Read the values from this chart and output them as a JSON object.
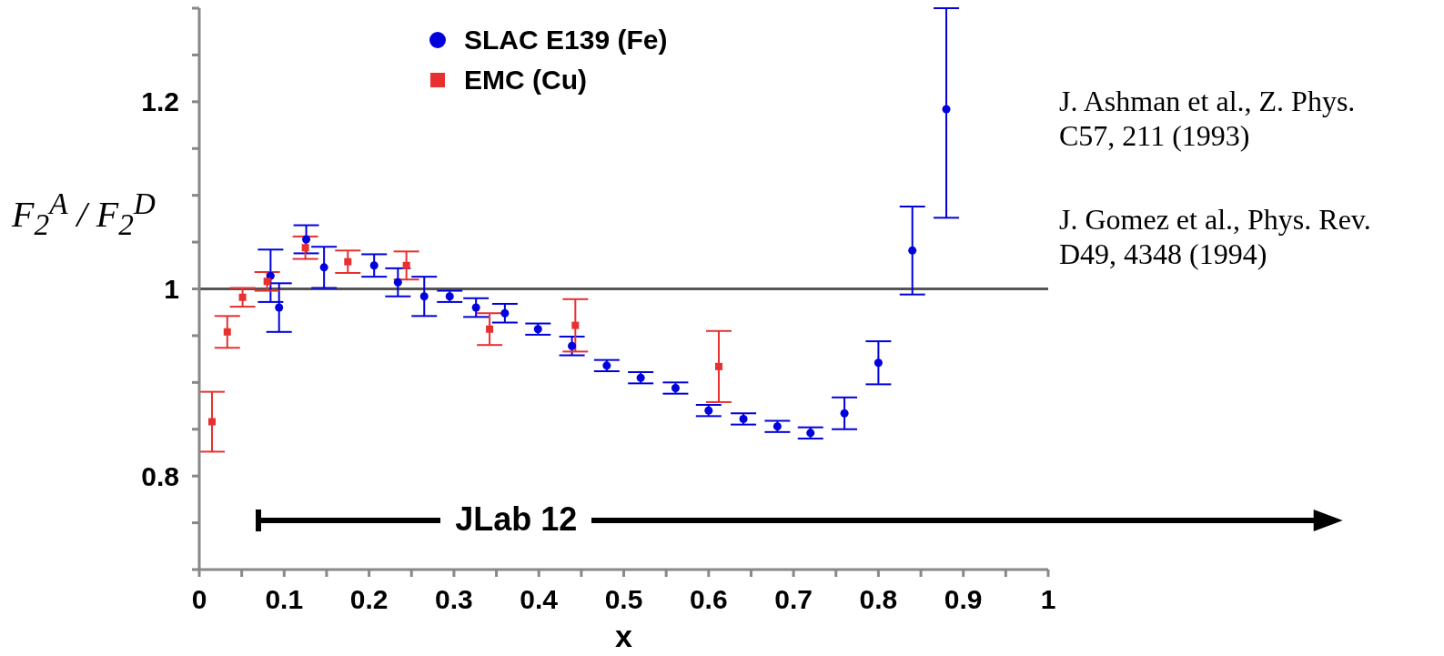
{
  "chart_data": {
    "type": "scatter",
    "xlabel": "x",
    "ylabel": "F$_{2}$$^{A}$ / F$_{2}$$^{D}$",
    "xlim": [
      0,
      1
    ],
    "ylim": [
      0.7,
      1.3
    ],
    "xticks": [
      0,
      {
        "value": 0.05,
        "label": null
      },
      0.1,
      {
        "value": 0.15,
        "label": null
      },
      0.2,
      {
        "value": 0.25,
        "label": null
      },
      0.3,
      {
        "value": 0.35,
        "label": null
      },
      0.4,
      {
        "value": 0.45,
        "label": null
      },
      0.5,
      {
        "value": 0.55,
        "label": null
      },
      0.6,
      {
        "value": 0.65,
        "label": null
      },
      0.7,
      {
        "value": 0.75,
        "label": null
      },
      0.8,
      {
        "value": 0.85,
        "label": null
      },
      0.9,
      {
        "value": 0.95,
        "label": null
      },
      1
    ],
    "yticks": [
      {
        "value": 0.7,
        "label": null
      },
      {
        "value": 0.75,
        "label": null
      },
      0.8,
      {
        "value": 0.85,
        "label": null
      },
      {
        "value": 0.9,
        "label": null
      },
      {
        "value": 0.95,
        "label": null
      },
      1,
      {
        "value": 1.05,
        "label": null
      },
      {
        "value": 1.1,
        "label": null
      },
      {
        "value": 1.15,
        "label": null
      },
      1.2,
      {
        "value": 1.25,
        "label": null
      },
      {
        "value": 1.3,
        "label": null
      }
    ],
    "grid": false,
    "legend": "top",
    "series": [
      {
        "name": "SLAC E139 (Fe)",
        "color": "#0000dd",
        "marker": "circle",
        "x": [
          0.084,
          0.094,
          0.126,
          0.147,
          0.206,
          0.234,
          0.265,
          0.295,
          0.326,
          0.36,
          0.399,
          0.439,
          0.48,
          0.52,
          0.561,
          0.6,
          0.641,
          0.681,
          0.72,
          0.76,
          0.8,
          0.84,
          0.88
        ],
        "values": [
          1.014,
          0.98,
          1.053,
          1.023,
          1.025,
          1.007,
          0.992,
          0.992,
          0.98,
          0.974,
          0.957,
          0.939,
          0.918,
          0.905,
          0.894,
          0.87,
          0.861,
          0.853,
          0.846,
          0.867,
          0.921,
          1.041,
          1.192
        ],
        "errors": [
          0.028,
          0.026,
          0.015,
          0.022,
          0.012,
          0.015,
          0.021,
          0.006,
          0.01,
          0.01,
          0.006,
          0.01,
          0.006,
          0.006,
          0.006,
          0.006,
          0.006,
          0.006,
          0.006,
          0.017,
          0.023,
          0.047,
          [
            1.076,
            1.3
          ]
        ]
      },
      {
        "name": "EMC (Cu)",
        "color": "#e83030",
        "marker": "square",
        "x": [
          0.015,
          0.033,
          0.051,
          0.08,
          0.125,
          0.175,
          0.244,
          0.342,
          0.443,
          0.612
        ],
        "values": [
          0.858,
          0.954,
          0.991,
          1.008,
          1.044,
          1.029,
          1.025,
          0.957,
          0.961,
          0.917
        ],
        "errors": [
          0.032,
          0.017,
          0.01,
          0.01,
          0.012,
          0.012,
          0.015,
          0.017,
          0.028,
          0.038
        ]
      }
    ],
    "ref_lines": [
      {
        "axis": "y",
        "value": 1,
        "color": "#555555"
      }
    ],
    "annotations": [
      "JLab 12",
      "J. Ashman et al., Z. Phys. C57, 211 (1993)",
      "J. Gomez et al., Phys. Rev. D49, 4348 (1994)"
    ]
  }
}
